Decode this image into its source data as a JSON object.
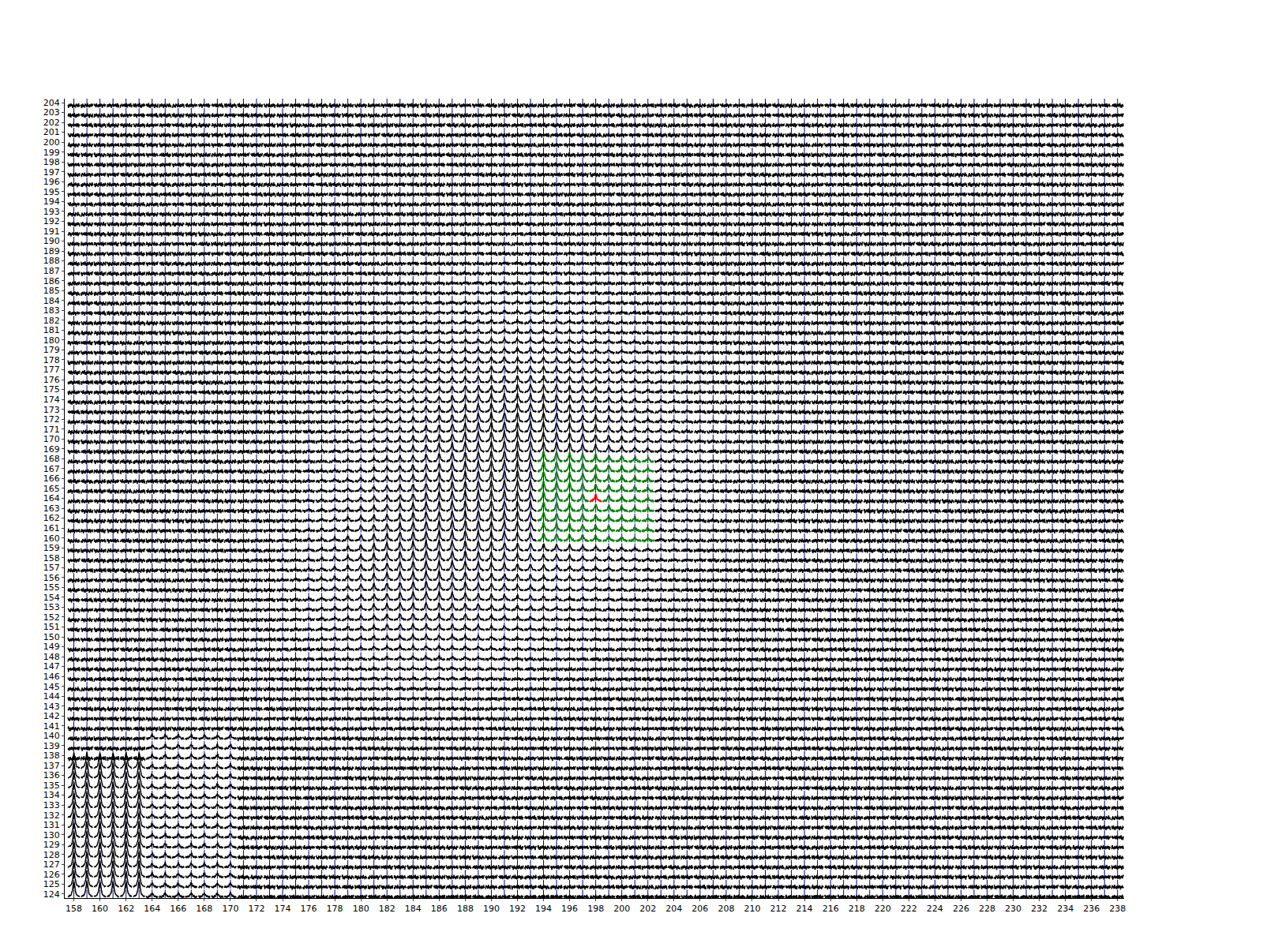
{
  "chart_data": {
    "type": "spectral_grid",
    "xlim": [
      157.3,
      238.5
    ],
    "ylim": [
      123.6,
      204.4
    ],
    "xticks": [
      158,
      160,
      162,
      164,
      166,
      168,
      170,
      172,
      174,
      176,
      178,
      180,
      182,
      184,
      186,
      188,
      190,
      192,
      194,
      196,
      198,
      200,
      202,
      204,
      206,
      208,
      210,
      212,
      214,
      216,
      218,
      220,
      222,
      224,
      226,
      228,
      230,
      232,
      234,
      236,
      238
    ],
    "yticks": [
      124,
      125,
      126,
      127,
      128,
      129,
      130,
      131,
      132,
      133,
      134,
      135,
      136,
      137,
      138,
      139,
      140,
      141,
      142,
      143,
      144,
      145,
      146,
      147,
      148,
      149,
      150,
      151,
      152,
      153,
      154,
      155,
      156,
      157,
      158,
      159,
      160,
      161,
      162,
      163,
      164,
      165,
      166,
      167,
      168,
      169,
      170,
      171,
      172,
      173,
      174,
      175,
      176,
      177,
      178,
      179,
      180,
      181,
      182,
      183,
      184,
      185,
      186,
      187,
      188,
      189,
      190,
      191,
      192,
      193,
      194,
      195,
      196,
      197,
      198,
      199,
      200,
      201,
      202,
      203,
      204
    ],
    "grid_x": [
      158,
      238
    ],
    "grid_y": [
      124,
      204
    ],
    "profile": [
      0.038,
      0.047,
      0.06,
      0.075,
      0.1,
      0.14,
      0.2,
      0.31,
      0.5,
      0.8,
      1.0,
      0.8,
      0.5,
      0.31,
      0.2,
      0.14,
      0.1,
      0.075,
      0.06,
      0.047,
      0.038
    ],
    "noise": [
      0.12,
      -0.08,
      0.2,
      -0.15,
      0.05,
      0.22,
      -0.2,
      0.1,
      -0.04,
      0.18,
      -0.12,
      0.02,
      0.25,
      -0.18,
      0.08,
      -0.22,
      0.15,
      0.0,
      -0.1,
      0.21,
      -0.06,
      0.12,
      -0.24,
      0.07,
      0.17,
      -0.14,
      0.03,
      -0.2,
      0.19,
      -0.02,
      0.11,
      -0.16,
      0.24,
      -0.09,
      0.06,
      -0.19,
      0.14,
      0.01,
      -0.13,
      0.2,
      -0.07,
      0.16,
      -0.23,
      0.09,
      -0.03,
      0.18,
      -0.11,
      0.04
    ],
    "blobs": [
      {
        "x": 192,
        "y": 168,
        "sx": 7,
        "sy": 9,
        "amplitude": 1.1
      },
      {
        "x": 184,
        "y": 156,
        "sx": 5,
        "sy": 6,
        "amplitude": 0.7
      }
    ],
    "boxes": [
      {
        "x": [
          158,
          163
        ],
        "y": [
          124,
          137
        ],
        "amplitude": 1.6
      },
      {
        "x": [
          164,
          170
        ],
        "y": [
          124,
          140
        ],
        "amplitude": 0.4
      }
    ],
    "color": "black",
    "line_color": "#00007f",
    "highlight": {
      "x": [
        194,
        202
      ],
      "y": [
        160,
        168
      ],
      "color": "green"
    },
    "marker_cell": {
      "x": 198,
      "y": 164,
      "color": "red"
    }
  }
}
